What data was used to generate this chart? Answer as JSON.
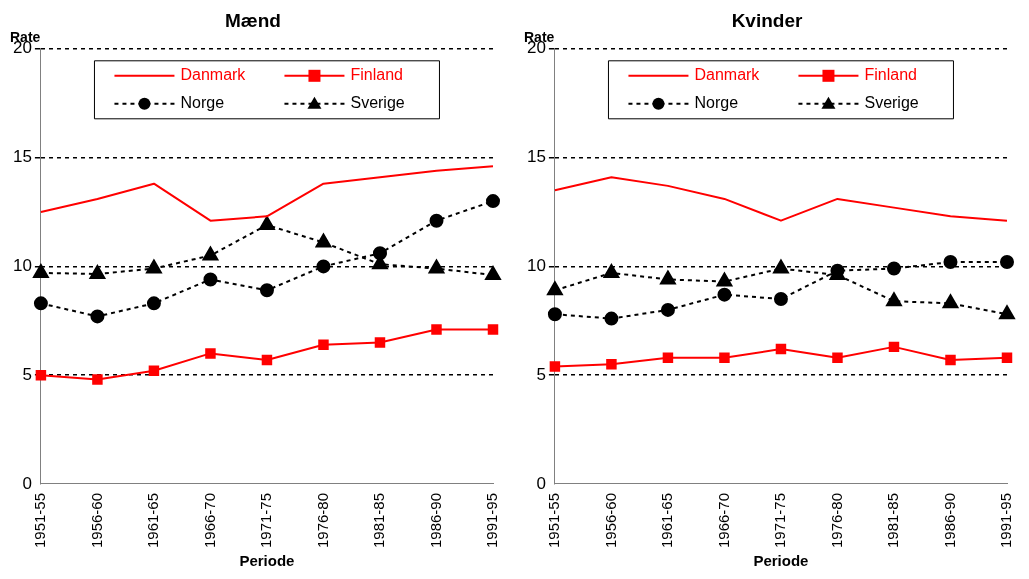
{
  "chart_data": [
    {
      "type": "line",
      "title": "Mænd",
      "ylabel": "Rate",
      "xlabel": "Periode",
      "categories": [
        "1951-55",
        "1956-60",
        "1961-65",
        "1966-70",
        "1971-75",
        "1976-80",
        "1981-85",
        "1986-90",
        "1991-95"
      ],
      "ylim": [
        0,
        20
      ],
      "yticks": [
        0,
        5,
        10,
        15,
        20
      ],
      "grid": "y",
      "legend": "top",
      "series": [
        {
          "name": "Danmark",
          "color": "#ff0000",
          "marker": "none",
          "line_style": "solid",
          "values": [
            12.5,
            13.1,
            13.8,
            12.1,
            12.3,
            13.8,
            14.1,
            14.4,
            14.6
          ]
        },
        {
          "name": "Finland",
          "color": "#ff0000",
          "marker": "square",
          "line_style": "solid",
          "values": [
            5.0,
            4.8,
            5.2,
            6.0,
            5.7,
            6.4,
            6.5,
            7.1,
            7.1
          ]
        },
        {
          "name": "Norge",
          "color": "#000000",
          "marker": "circle",
          "line_style": "dashed",
          "values": [
            8.3,
            7.7,
            8.3,
            9.4,
            8.9,
            10.0,
            10.6,
            12.1,
            13.0
          ]
        },
        {
          "name": "Sverige",
          "color": "#000000",
          "marker": "triangle",
          "line_style": "dashed",
          "values": [
            9.7,
            9.65,
            9.9,
            10.5,
            11.9,
            11.1,
            10.1,
            9.9,
            9.6
          ]
        }
      ]
    },
    {
      "type": "line",
      "title": "Kvinder",
      "ylabel": "Rate",
      "xlabel": "Periode",
      "categories": [
        "1951-55",
        "1956-60",
        "1961-65",
        "1966-70",
        "1971-75",
        "1976-80",
        "1981-85",
        "1986-90",
        "1991-95"
      ],
      "ylim": [
        0,
        20
      ],
      "yticks": [
        0,
        5,
        10,
        15,
        20
      ],
      "grid": "y",
      "legend": "top",
      "series": [
        {
          "name": "Danmark",
          "color": "#ff0000",
          "marker": "none",
          "line_style": "solid",
          "values": [
            13.5,
            14.1,
            13.7,
            13.1,
            12.1,
            13.1,
            12.7,
            12.3,
            12.1
          ]
        },
        {
          "name": "Finland",
          "color": "#ff0000",
          "marker": "square",
          "line_style": "solid",
          "values": [
            5.4,
            5.5,
            5.8,
            5.8,
            6.2,
            5.8,
            6.3,
            5.7,
            5.8
          ]
        },
        {
          "name": "Norge",
          "color": "#000000",
          "marker": "circle",
          "line_style": "dashed",
          "values": [
            7.8,
            7.6,
            8.0,
            8.7,
            8.5,
            9.8,
            9.9,
            10.2,
            10.2
          ]
        },
        {
          "name": "Sverige",
          "color": "#000000",
          "marker": "triangle",
          "line_style": "dashed",
          "values": [
            8.9,
            9.7,
            9.4,
            9.3,
            9.9,
            9.6,
            8.4,
            8.3,
            7.8
          ]
        }
      ]
    }
  ]
}
